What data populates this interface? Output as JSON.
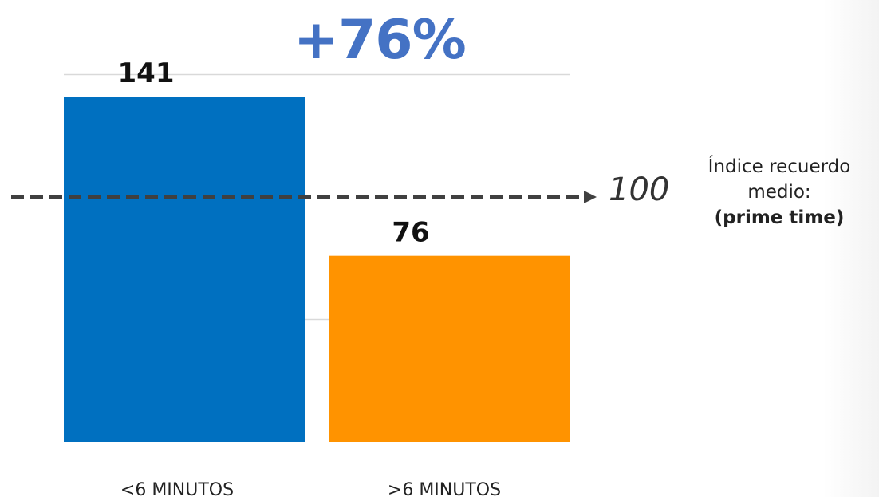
{
  "headline": "+76%",
  "colors": {
    "headline": "#4472C4",
    "bar_blue": "#0070C0",
    "bar_orange": "#FF9300",
    "grid": "#d9d9d9",
    "reference_line": "#404040"
  },
  "reference": {
    "value_label": "100",
    "note_line1": "Índice recuerdo",
    "note_line2": "medio:",
    "note_line3": "(prime time)"
  },
  "chart_data": {
    "type": "bar",
    "categories": [
      "<6 MINUTOS",
      ">6 MINUTOS"
    ],
    "values": [
      141,
      76
    ],
    "data_labels": [
      "141",
      "76"
    ],
    "reference_line": 100,
    "ylim": [
      0,
      150
    ],
    "grid": true,
    "legend": "none"
  }
}
